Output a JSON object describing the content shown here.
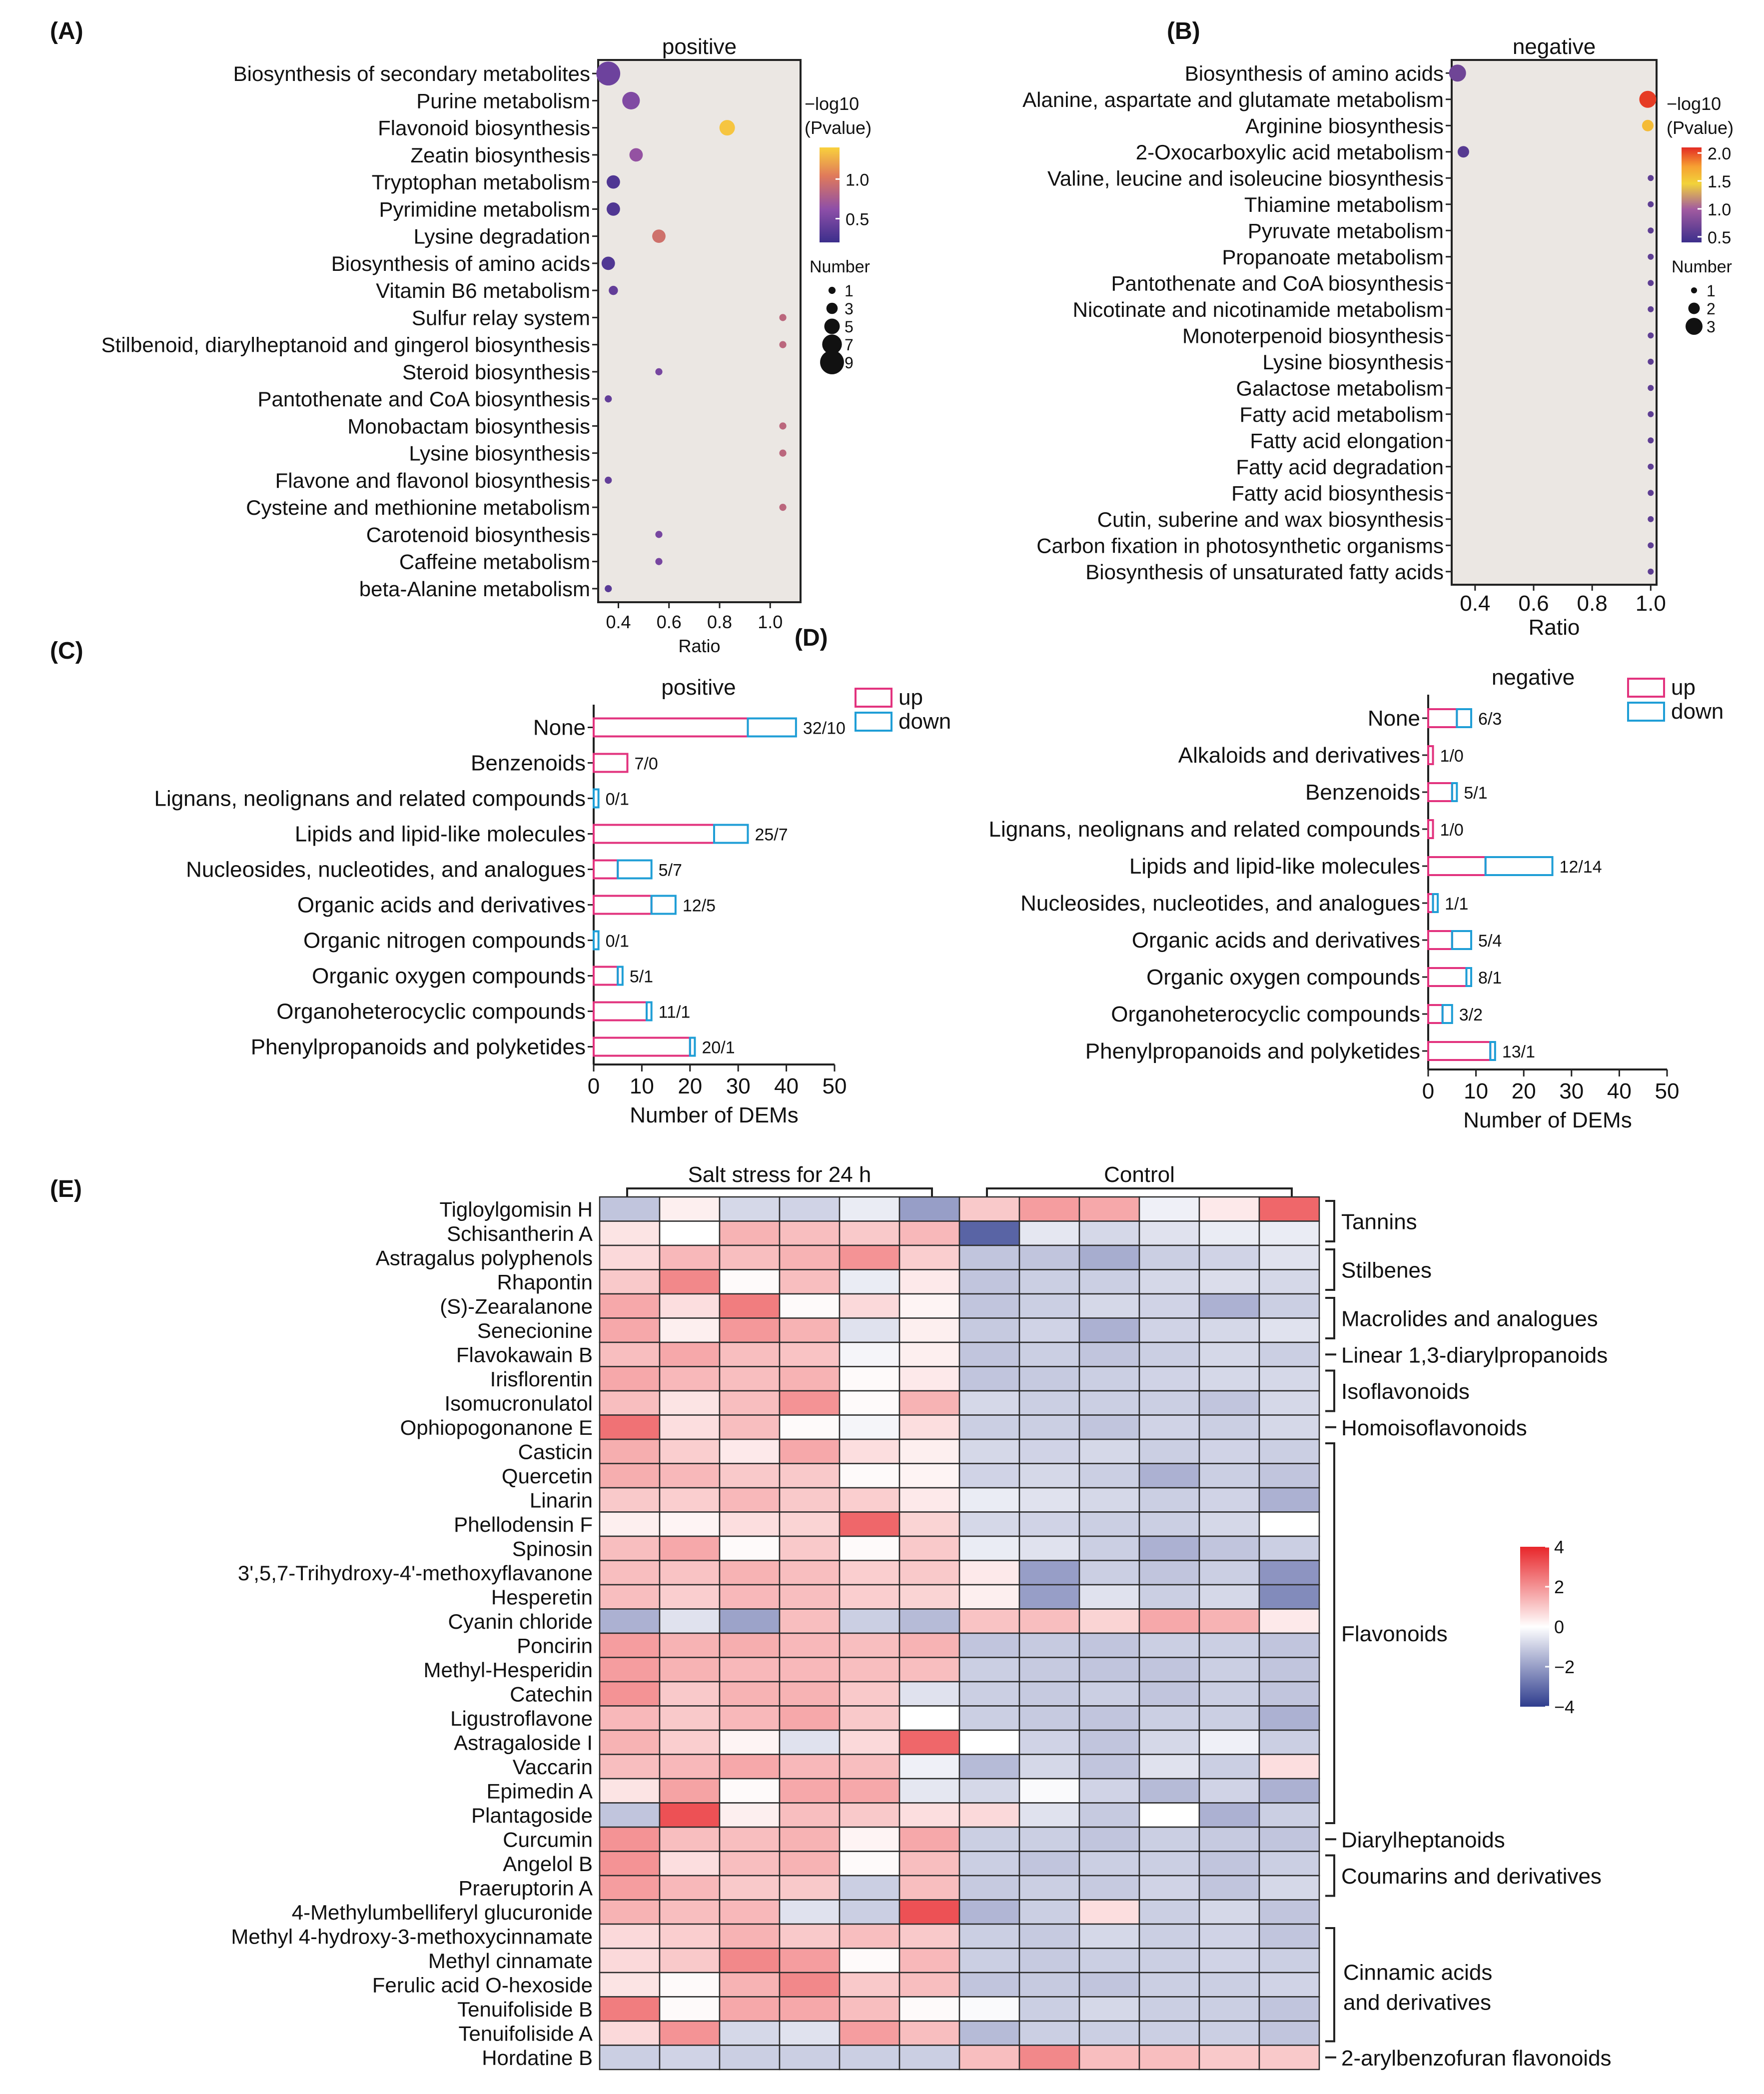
{
  "chart_data": [
    {
      "type": "scatter",
      "panel": "(A)",
      "title": "positive",
      "xlabel": "Ratio",
      "xlim": [
        0.32,
        1.12
      ],
      "xticks": [
        "0.4",
        "0.6",
        "0.8",
        "1.0"
      ],
      "color_legend_title": [
        "−log10",
        "(Pvalue)"
      ],
      "color_ticks": [
        "1.0",
        "0.5"
      ],
      "color_range": [
        0.2,
        1.4
      ],
      "size_legend_title": "Number",
      "size_legend": [
        "1",
        "3",
        "5",
        "7",
        "9"
      ],
      "categories": [
        "Biosynthesis of secondary metabolites",
        "Purine metabolism",
        "Flavonoid biosynthesis",
        "Zeatin biosynthesis",
        "Tryptophan metabolism",
        "Pyrimidine metabolism",
        "Lysine degradation",
        "Biosynthesis of amino acids",
        "Vitamin B6 metabolism",
        "Sulfur relay system",
        "Stilbenoid, diarylheptanoid and gingerol biosynthesis",
        "Steroid biosynthesis",
        "Pantothenate and CoA biosynthesis",
        "Monobactam biosynthesis",
        "Lysine biosynthesis",
        "Flavone and flavonol biosynthesis",
        "Cysteine and methionine metabolism",
        "Carotenoid biosynthesis",
        "Caffeine metabolism",
        "beta-Alanine metabolism"
      ],
      "ratio": [
        0.36,
        0.45,
        0.83,
        0.47,
        0.38,
        0.38,
        0.56,
        0.36,
        0.38,
        1.05,
        1.05,
        0.56,
        0.36,
        1.05,
        1.05,
        0.36,
        1.05,
        0.56,
        0.56,
        0.36
      ],
      "pvalue_log": [
        0.45,
        0.55,
        1.35,
        0.65,
        0.3,
        0.3,
        0.95,
        0.3,
        0.4,
        0.85,
        0.85,
        0.5,
        0.4,
        0.85,
        0.85,
        0.4,
        0.85,
        0.5,
        0.5,
        0.35
      ],
      "number": [
        9,
        6,
        5,
        4,
        4,
        4,
        4,
        4,
        2,
        1,
        1,
        1,
        1,
        1,
        1,
        1,
        1,
        1,
        1,
        1
      ]
    },
    {
      "type": "scatter",
      "panel": "(B)",
      "title": "negative",
      "xlabel": "Ratio",
      "xlim": [
        0.32,
        1.02
      ],
      "xticks": [
        "0.4",
        "0.6",
        "0.8",
        "1.0"
      ],
      "color_legend_title": [
        "−log10",
        "(Pvalue)"
      ],
      "color_ticks": [
        "2.0",
        "1.5",
        "1.0",
        "0.5"
      ],
      "color_range": [
        0.4,
        2.1
      ],
      "size_legend_title": "Number",
      "size_legend": [
        "1",
        "2",
        "3"
      ],
      "categories": [
        "Biosynthesis of amino acids",
        "Alanine, aspartate and glutamate metabolism",
        "Arginine biosynthesis",
        "2-Oxocarboxylic acid metabolism",
        "Valine, leucine and isoleucine biosynthesis",
        "Thiamine metabolism",
        "Pyruvate metabolism",
        "Propanoate metabolism",
        "Pantothenate and CoA biosynthesis",
        "Nicotinate and nicotinamide metabolism",
        "Monoterpenoid biosynthesis",
        "Lysine biosynthesis",
        "Galactose metabolism",
        "Fatty acid metabolism",
        "Fatty acid elongation",
        "Fatty acid degradation",
        "Fatty acid biosynthesis",
        "Cutin, suberine and wax biosynthesis",
        "Carbon fixation in photosynthetic organisms",
        "Biosynthesis of unsaturated fatty acids"
      ],
      "ratio": [
        0.34,
        0.99,
        0.99,
        0.36,
        1.0,
        1.0,
        1.0,
        1.0,
        1.0,
        1.0,
        1.0,
        1.0,
        1.0,
        1.0,
        1.0,
        1.0,
        1.0,
        1.0,
        1.0,
        1.0
      ],
      "pvalue_log": [
        0.7,
        2.05,
        1.6,
        0.55,
        0.6,
        0.6,
        0.6,
        0.6,
        0.6,
        0.6,
        0.6,
        0.6,
        0.6,
        0.6,
        0.6,
        0.6,
        0.6,
        0.6,
        0.6,
        0.6
      ],
      "number": [
        3,
        3,
        2,
        2,
        1,
        1,
        1,
        1,
        1,
        1,
        1,
        1,
        1,
        1,
        1,
        1,
        1,
        1,
        1,
        1
      ]
    },
    {
      "type": "bar",
      "panel": "(C)",
      "title": "positive",
      "xlabel": "Number of DEMs",
      "xlim": [
        0,
        50
      ],
      "xticks": [
        "0",
        "10",
        "20",
        "30",
        "40",
        "50"
      ],
      "legend": [
        "up",
        "down"
      ],
      "categories": [
        "None",
        "Benzenoids",
        "Lignans, neolignans and related compounds",
        "Lipids and lipid-like molecules",
        "Nucleosides, nucleotides, and analogues",
        "Organic acids and derivatives",
        "Organic nitrogen compounds",
        "Organic oxygen compounds",
        "Organoheterocyclic compounds",
        "Phenylpropanoids and polyketides"
      ],
      "up": [
        32,
        7,
        0,
        25,
        5,
        12,
        0,
        5,
        11,
        20
      ],
      "down": [
        10,
        0,
        1,
        7,
        7,
        5,
        1,
        1,
        1,
        1
      ],
      "labels": [
        "32/10",
        "7/0",
        "0/1",
        "25/7",
        "5/7",
        "12/5",
        "0/1",
        "5/1",
        "11/1",
        "20/1"
      ]
    },
    {
      "type": "bar",
      "panel": "(D)",
      "title": "negative",
      "xlabel": "Number of DEMs",
      "xlim": [
        0,
        50
      ],
      "xticks": [
        "0",
        "10",
        "20",
        "30",
        "40",
        "50"
      ],
      "legend": [
        "up",
        "down"
      ],
      "categories": [
        "None",
        "Alkaloids and derivatives",
        "Benzenoids",
        "Lignans, neolignans and related compounds",
        "Lipids and lipid-like molecules",
        "Nucleosides, nucleotides, and analogues",
        "Organic acids and derivatives",
        "Organic oxygen compounds",
        "Organoheterocyclic compounds",
        "Phenylpropanoids and polyketides"
      ],
      "up": [
        6,
        1,
        5,
        1,
        12,
        1,
        5,
        8,
        3,
        13
      ],
      "down": [
        3,
        0,
        1,
        0,
        14,
        1,
        4,
        1,
        2,
        1
      ],
      "labels": [
        "6/3",
        "1/0",
        "5/1",
        "1/0",
        "12/14",
        "1/1",
        "5/4",
        "8/1",
        "3/2",
        "13/1"
      ]
    },
    {
      "type": "heatmap",
      "panel": "(E)",
      "group_labels": [
        "Salt stress for 24 h",
        "Control"
      ],
      "color_ticks": [
        "4",
        "2",
        "0",
        "−2",
        "−4"
      ],
      "color_range": [
        -4,
        4
      ],
      "rows": [
        "Tigloylgomisin H",
        "Schisantherin A",
        "Astragalus polyphenols",
        "Rhapontin",
        "(S)-Zearalanone",
        "Senecionine",
        "Flavokawain B",
        "Irisflorentin",
        "Isomucronulatol",
        "Ophiopogonanone E",
        "Casticin",
        "Quercetin",
        "Linarin",
        "Phellodensin F",
        "Spinosin",
        "3',5,7-Trihydroxy-4'-methoxyflavanone",
        "Hesperetin",
        "Cyanin chloride",
        "Poncirin",
        "Methyl-Hesperidin",
        "Catechin",
        "Ligustroflavone",
        "Astragaloside I",
        "Vaccarin",
        "Epimedin A",
        "Plantagoside",
        "Curcumin",
        "Angelol B",
        "Praeruptorin A",
        "4-Methylumbelliferyl glucuronide",
        "Methyl 4-hydroxy-3-methoxycinnamate",
        "Methyl cinnamate",
        "Ferulic acid O-hexoside",
        "Tenuifoliside B",
        "Tenuifoliside A",
        "Hordatine B"
      ],
      "values": [
        [
          -1.2,
          0.3,
          -0.8,
          -0.9,
          -0.4,
          -2.0,
          1.0,
          1.8,
          1.6,
          -0.3,
          0.4,
          2.8
        ],
        [
          0.5,
          0.0,
          1.4,
          1.2,
          1.0,
          1.3,
          -3.2,
          -0.5,
          -0.8,
          -0.6,
          -0.4,
          -0.4
        ],
        [
          0.7,
          1.3,
          1.2,
          1.4,
          2.0,
          0.9,
          -1.2,
          -1.2,
          -1.7,
          -1.0,
          -0.9,
          -0.6
        ],
        [
          1.0,
          2.2,
          0.1,
          1.2,
          -0.4,
          0.4,
          -1.2,
          -1.0,
          -1.0,
          -0.8,
          -0.7,
          -0.8
        ],
        [
          1.6,
          0.6,
          2.4,
          0.1,
          0.7,
          0.2,
          -1.2,
          -1.0,
          -0.8,
          -0.9,
          -1.6,
          -1.0
        ],
        [
          1.6,
          0.3,
          1.9,
          1.4,
          -0.6,
          0.3,
          -1.1,
          -0.9,
          -1.6,
          -0.9,
          -0.8,
          -0.6
        ],
        [
          1.2,
          1.6,
          1.2,
          1.1,
          -0.2,
          0.3,
          -1.2,
          -1.0,
          -1.2,
          -1.0,
          -0.8,
          -1.0
        ],
        [
          1.6,
          1.3,
          1.2,
          1.4,
          0.1,
          0.4,
          -1.2,
          -1.1,
          -1.0,
          -0.9,
          -0.8,
          -0.8
        ],
        [
          1.2,
          0.5,
          1.2,
          2.0,
          0.1,
          1.4,
          -0.8,
          -1.0,
          -1.0,
          -1.0,
          -1.2,
          -0.8
        ],
        [
          2.6,
          0.6,
          1.2,
          0.1,
          -0.2,
          0.6,
          -1.0,
          -1.0,
          -1.2,
          -0.9,
          -1.0,
          -0.8
        ],
        [
          1.5,
          0.9,
          0.4,
          1.6,
          0.6,
          0.3,
          -0.8,
          -0.9,
          -0.8,
          -1.0,
          -0.9,
          -1.0
        ],
        [
          1.5,
          1.3,
          1.0,
          1.0,
          0.1,
          0.2,
          -0.9,
          -0.8,
          -1.0,
          -1.6,
          -1.0,
          -1.2
        ],
        [
          1.0,
          0.9,
          1.3,
          1.0,
          0.9,
          0.4,
          -0.4,
          -0.6,
          -0.8,
          -1.0,
          -0.9,
          -1.6
        ],
        [
          0.3,
          0.2,
          0.6,
          0.8,
          2.8,
          0.8,
          -0.8,
          -0.9,
          -1.0,
          -1.0,
          -0.8,
          0.0
        ],
        [
          1.2,
          1.6,
          0.1,
          1.0,
          0.1,
          1.0,
          -0.4,
          -0.6,
          -1.0,
          -1.6,
          -1.2,
          -1.0
        ],
        [
          1.2,
          1.1,
          1.4,
          1.2,
          0.9,
          1.0,
          0.4,
          -2.0,
          -1.0,
          -1.2,
          -1.0,
          -2.2
        ],
        [
          1.2,
          0.9,
          1.3,
          1.2,
          0.9,
          0.8,
          0.3,
          -2.0,
          -0.6,
          -1.0,
          -0.8,
          -2.4
        ],
        [
          -1.6,
          -0.6,
          -1.9,
          1.2,
          -1.0,
          -1.4,
          1.1,
          1.2,
          0.8,
          1.6,
          1.4,
          0.4
        ],
        [
          1.8,
          1.4,
          1.5,
          1.3,
          1.2,
          1.4,
          -1.2,
          -1.1,
          -1.2,
          -1.0,
          -1.0,
          -1.2
        ],
        [
          1.8,
          1.4,
          1.3,
          1.3,
          1.2,
          1.2,
          -1.0,
          -1.1,
          -1.2,
          -1.2,
          -1.0,
          -1.2
        ],
        [
          2.0,
          1.0,
          1.4,
          1.4,
          1.0,
          -0.6,
          -1.0,
          -1.1,
          -1.0,
          -1.2,
          -1.0,
          -1.2
        ],
        [
          1.3,
          1.0,
          1.3,
          1.6,
          1.0,
          0.0,
          -1.0,
          -1.1,
          -1.2,
          -1.0,
          -1.0,
          -1.6
        ],
        [
          1.4,
          0.9,
          0.2,
          -0.6,
          0.7,
          2.8,
          0.0,
          -0.9,
          -1.2,
          -0.8,
          -0.3,
          -1.0
        ],
        [
          1.2,
          1.3,
          1.6,
          1.3,
          1.2,
          -0.3,
          -1.4,
          -0.8,
          -1.2,
          -0.6,
          -1.0,
          0.6
        ],
        [
          0.5,
          1.7,
          0.1,
          1.6,
          1.6,
          -0.5,
          -0.8,
          -0.1,
          -0.9,
          -1.4,
          -0.9,
          -1.6
        ],
        [
          -1.2,
          3.2,
          0.3,
          1.2,
          1.0,
          0.6,
          0.7,
          -0.6,
          -1.1,
          0.0,
          -1.6,
          -1.0
        ],
        [
          2.0,
          1.2,
          1.2,
          1.4,
          0.2,
          1.6,
          -1.0,
          -1.0,
          -1.2,
          -1.0,
          -1.1,
          -1.2
        ],
        [
          2.0,
          0.6,
          1.2,
          1.4,
          0.1,
          1.2,
          -1.0,
          -1.2,
          -1.0,
          -1.0,
          -1.2,
          -1.0
        ],
        [
          1.8,
          1.3,
          1.0,
          1.0,
          -1.0,
          1.2,
          -1.1,
          -1.0,
          -1.1,
          -0.9,
          -1.2,
          -0.8
        ],
        [
          1.4,
          1.2,
          1.3,
          -0.6,
          -1.0,
          3.2,
          -1.5,
          -1.0,
          0.6,
          -1.0,
          -0.8,
          -1.2
        ],
        [
          0.7,
          0.9,
          1.4,
          1.0,
          1.2,
          1.0,
          -1.0,
          -1.1,
          -0.8,
          -1.0,
          -0.9,
          -1.2
        ],
        [
          0.7,
          1.0,
          2.2,
          1.8,
          0.1,
          1.3,
          -1.0,
          -1.1,
          -1.0,
          -1.0,
          -0.9,
          -1.0
        ],
        [
          0.5,
          0.1,
          1.4,
          2.2,
          1.0,
          1.2,
          -1.2,
          -1.1,
          -1.2,
          -1.0,
          -1.0,
          -0.9
        ],
        [
          2.4,
          0.1,
          1.6,
          1.6,
          1.2,
          0.1,
          -0.1,
          -1.0,
          -0.8,
          -1.0,
          -1.0,
          -1.2
        ],
        [
          0.7,
          2.0,
          -0.8,
          -0.6,
          1.8,
          1.2,
          -1.4,
          -1.0,
          -1.0,
          -1.0,
          -1.0,
          -1.2
        ],
        [
          -1.0,
          -0.9,
          -1.0,
          -1.0,
          -1.0,
          -1.0,
          1.2,
          2.2,
          1.2,
          1.2,
          1.0,
          1.0
        ]
      ],
      "annotations": [
        {
          "label": "Tannins",
          "from": 0,
          "to": 1
        },
        {
          "label": "Stilbenes",
          "from": 2,
          "to": 3
        },
        {
          "label": "Macrolides and analogues",
          "from": 4,
          "to": 5
        },
        {
          "label": "Linear 1,3-diarylpropanoids",
          "from": 6,
          "to": 6
        },
        {
          "label": "Isoflavonoids",
          "from": 7,
          "to": 8
        },
        {
          "label": "Homoisoflavonoids",
          "from": 9,
          "to": 9
        },
        {
          "label": "Flavonoids",
          "from": 10,
          "to": 25
        },
        {
          "label": "Diarylheptanoids",
          "from": 26,
          "to": 26
        },
        {
          "label": "Coumarins and derivatives",
          "from": 27,
          "to": 28
        },
        {
          "label": "Cinnamic acids",
          "label2": "and derivatives",
          "from": 30,
          "to": 34
        },
        {
          "label": "2-arylbenzofuran flavonoids",
          "from": 35,
          "to": 35
        }
      ]
    }
  ],
  "panel_labels": {
    "a": "(A)",
    "b": "(B)",
    "c": "(C)",
    "d": "(D)",
    "e": "(E)"
  }
}
